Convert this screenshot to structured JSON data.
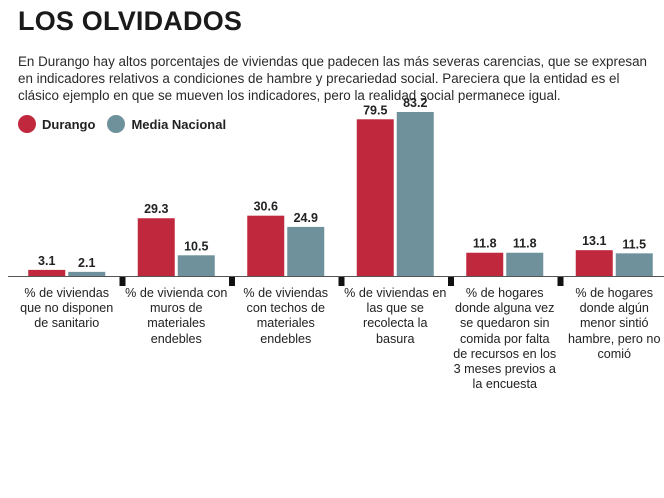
{
  "header": {
    "title": "LOS OLVIDADOS",
    "subtitle": "En Durango hay altos porcentajes de viviendas que padecen las más severas carencias, que se expresan en indicadores relativos a condiciones de hambre y precariedad social. Pareciera que la entidad es el clásico ejemplo en que se mueven los indicadores, pero la realidad social permanece igual."
  },
  "colors": {
    "durango": "#c0283d",
    "nacional": "#6e919b"
  },
  "chart_data": {
    "type": "bar",
    "title": "LOS OLVIDADOS",
    "categories": [
      "% de viviendas que no disponen de sanitario",
      "% de vivienda con muros de materiales endebles",
      "% de viviendas con techos de materiales endebles",
      "% de viviendas en las que se recolecta la basura",
      "% de hogares donde alguna vez se quedaron sin comida por falta de recursos en los 3 meses previos a la encuesta",
      "% de hogares donde algún menor sintió hambre, pero no comió"
    ],
    "series": [
      {
        "name": "Durango",
        "values": [
          3.1,
          29.3,
          30.6,
          79.5,
          11.8,
          13.1
        ],
        "labels": [
          "3.1",
          "29.3",
          "30.6",
          "79.5",
          "11.8",
          "13.1"
        ]
      },
      {
        "name": "Media Nacional",
        "values": [
          2.1,
          10.5,
          24.9,
          83.2,
          11.8,
          11.5
        ],
        "labels": [
          "2.1",
          "10.5",
          "24.9",
          "83.2",
          "11.8",
          "11.5"
        ]
      }
    ],
    "ylim": [
      0,
      83.2
    ],
    "grid": false,
    "legend_position": "top-left"
  }
}
